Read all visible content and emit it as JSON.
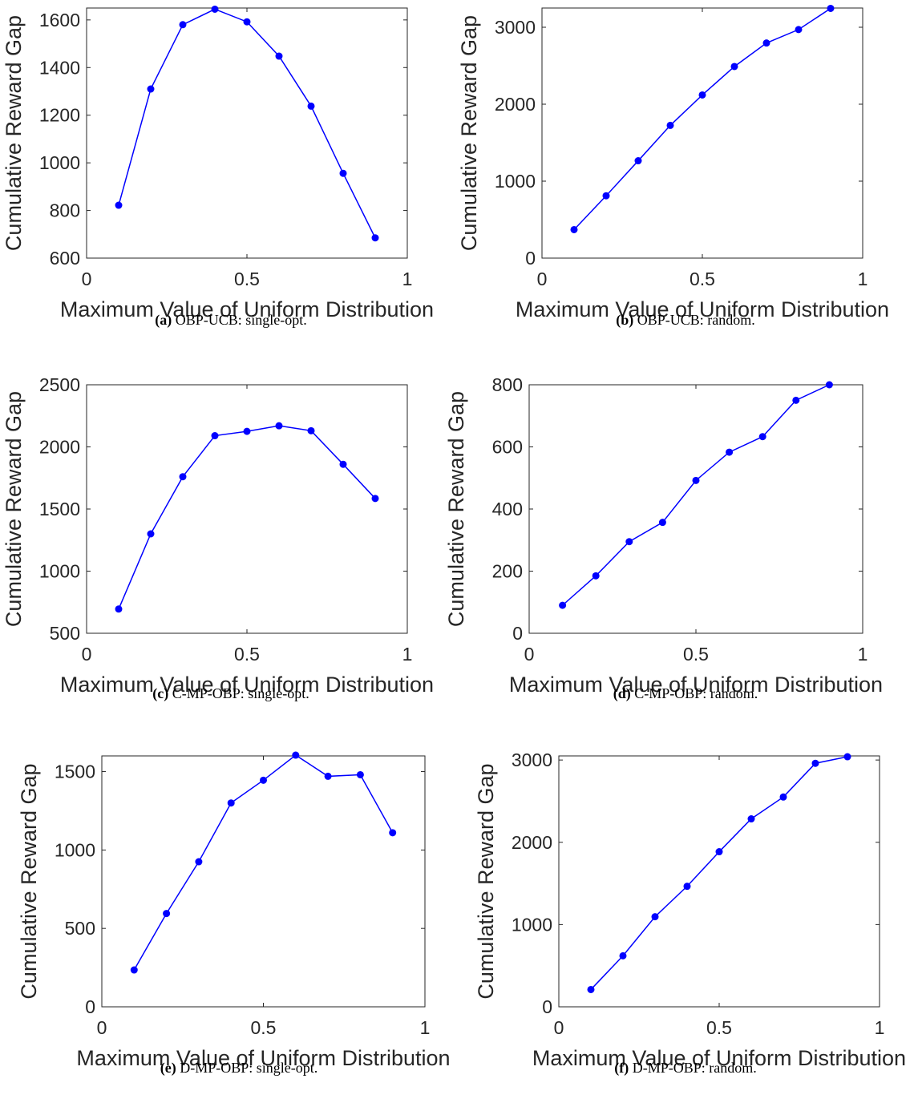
{
  "figure": {
    "panels": [
      {
        "label": "(a)",
        "caption": "OBP-UCB: single-opt."
      },
      {
        "label": "(b)",
        "caption": "OBP-UCB: random."
      },
      {
        "label": "(c)",
        "caption": "C-MP-OBP: single-opt."
      },
      {
        "label": "(d)",
        "caption": "C-MP-OBP: random."
      },
      {
        "label": "(e)",
        "caption": "D-MP-OBP: single-opt."
      },
      {
        "label": "(f)",
        "caption": "D-MP-OBP: random."
      }
    ]
  },
  "style": {
    "line_color": "#0000ff",
    "axis_color": "#262626"
  },
  "chart_data": [
    {
      "type": "line",
      "xlabel": "Maximum Value of Uniform Distribution",
      "ylabel": "Cumulative Reward Gap",
      "xlim": [
        0,
        1
      ],
      "ylim": [
        600,
        1650
      ],
      "xticks": [
        0,
        0.5,
        1
      ],
      "xtick_labels": [
        "0",
        "0.5",
        "1"
      ],
      "yticks": [
        600,
        800,
        1000,
        1200,
        1400,
        1600
      ],
      "ytick_labels": [
        "600",
        "800",
        "1000",
        "1200",
        "1400",
        "1600"
      ],
      "grid": false,
      "x": [
        0.1,
        0.2,
        0.3,
        0.4,
        0.5,
        0.6,
        0.7,
        0.8,
        0.9
      ],
      "series": [
        {
          "values": [
            822,
            1310,
            1580,
            1645,
            1592,
            1448,
            1238,
            956,
            685
          ]
        }
      ]
    },
    {
      "type": "line",
      "xlabel": "Maximum Value of Uniform Distribution",
      "ylabel": "Cumulative Reward Gap",
      "xlim": [
        0,
        1
      ],
      "ylim": [
        0,
        3250
      ],
      "xticks": [
        0,
        0.5,
        1
      ],
      "xtick_labels": [
        "0",
        "0.5",
        "1"
      ],
      "yticks": [
        0,
        1000,
        2000,
        3000
      ],
      "ytick_labels": [
        "0",
        "1000",
        "2000",
        "3000"
      ],
      "grid": false,
      "x": [
        0.1,
        0.2,
        0.3,
        0.4,
        0.5,
        0.6,
        0.7,
        0.8,
        0.9
      ],
      "series": [
        {
          "values": [
            370,
            810,
            1265,
            1725,
            2120,
            2490,
            2795,
            2970,
            3245
          ]
        }
      ]
    },
    {
      "type": "line",
      "xlabel": "Maximum Value of Uniform Distribution",
      "ylabel": "Cumulative Reward Gap",
      "xlim": [
        0,
        1
      ],
      "ylim": [
        500,
        2500
      ],
      "xticks": [
        0,
        0.5,
        1
      ],
      "xtick_labels": [
        "0",
        "0.5",
        "1"
      ],
      "yticks": [
        500,
        1000,
        1500,
        2000,
        2500
      ],
      "ytick_labels": [
        "500",
        "1000",
        "1500",
        "2000",
        "2500"
      ],
      "grid": false,
      "x": [
        0.1,
        0.2,
        0.3,
        0.4,
        0.5,
        0.6,
        0.7,
        0.8,
        0.9
      ],
      "series": [
        {
          "values": [
            695,
            1300,
            1760,
            2090,
            2125,
            2170,
            2130,
            1860,
            1585
          ]
        }
      ]
    },
    {
      "type": "line",
      "xlabel": "Maximum Value of Uniform Distribution",
      "ylabel": "Cumulative Reward Gap",
      "xlim": [
        0,
        1
      ],
      "ylim": [
        0,
        800
      ],
      "xticks": [
        0,
        0.5,
        1
      ],
      "xtick_labels": [
        "0",
        "0.5",
        "1"
      ],
      "yticks": [
        0,
        200,
        400,
        600,
        800
      ],
      "ytick_labels": [
        "0",
        "200",
        "400",
        "600",
        "800"
      ],
      "grid": false,
      "x": [
        0.1,
        0.2,
        0.3,
        0.4,
        0.5,
        0.6,
        0.7,
        0.8,
        0.9
      ],
      "series": [
        {
          "values": [
            90,
            185,
            295,
            357,
            492,
            583,
            633,
            750,
            800
          ]
        }
      ]
    },
    {
      "type": "line",
      "xlabel": "Maximum Value of Uniform Distribution",
      "ylabel": "Cumulative Reward Gap",
      "xlim": [
        0,
        1
      ],
      "ylim": [
        0,
        1600
      ],
      "xticks": [
        0,
        0.5,
        1
      ],
      "xtick_labels": [
        "0",
        "0.5",
        "1"
      ],
      "yticks": [
        0,
        500,
        1000,
        1500
      ],
      "ytick_labels": [
        "0",
        "500",
        "1000",
        "1500"
      ],
      "grid": false,
      "x": [
        0.1,
        0.2,
        0.3,
        0.4,
        0.5,
        0.6,
        0.7,
        0.8,
        0.9
      ],
      "series": [
        {
          "values": [
            235,
            595,
            925,
            1300,
            1445,
            1605,
            1470,
            1480,
            1110
          ]
        }
      ]
    },
    {
      "type": "line",
      "xlabel": "Maximum Value of Uniform Distribution",
      "ylabel": "Cumulative Reward Gap",
      "xlim": [
        0,
        1
      ],
      "ylim": [
        0,
        3050
      ],
      "xticks": [
        0,
        0.5,
        1
      ],
      "xtick_labels": [
        "0",
        "0.5",
        "1"
      ],
      "yticks": [
        0,
        1000,
        2000,
        3000
      ],
      "ytick_labels": [
        "0",
        "1000",
        "2000",
        "3000"
      ],
      "grid": false,
      "x": [
        0.1,
        0.2,
        0.3,
        0.4,
        0.5,
        0.6,
        0.7,
        0.8,
        0.9
      ],
      "series": [
        {
          "values": [
            210,
            620,
            1095,
            1465,
            1885,
            2285,
            2550,
            2960,
            3040
          ]
        }
      ]
    }
  ]
}
